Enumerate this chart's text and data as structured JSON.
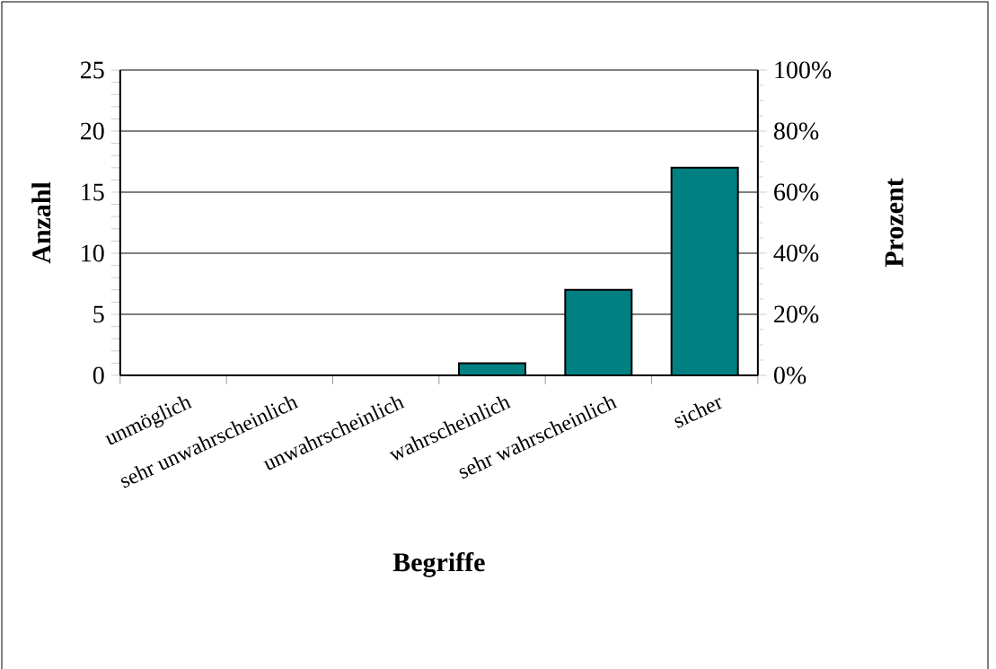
{
  "chart_data": {
    "type": "bar",
    "xlabel": "Begriffe",
    "ylabel": "Anzahl",
    "y2label": "Prozent",
    "categories": [
      "unmöglich",
      "sehr  unwahrscheinlich",
      "unwahrscheinlich",
      "wahrscheinlich",
      "sehr wahrscheinlich",
      "sicher"
    ],
    "values": [
      0,
      0,
      0,
      1,
      7,
      17
    ],
    "color": "#008080",
    "ylim": [
      0,
      25
    ],
    "yticks": [
      0,
      5,
      10,
      15,
      20,
      25
    ],
    "y2lim": [
      0,
      100
    ],
    "y2ticks": [
      {
        "value": 0,
        "label": "0%"
      },
      {
        "value": 20,
        "label": "20%"
      },
      {
        "value": 40,
        "label": "40%"
      },
      {
        "value": 60,
        "label": "60%"
      },
      {
        "value": 80,
        "label": "80%"
      },
      {
        "value": 100,
        "label": "100%"
      }
    ],
    "grid": "y"
  }
}
